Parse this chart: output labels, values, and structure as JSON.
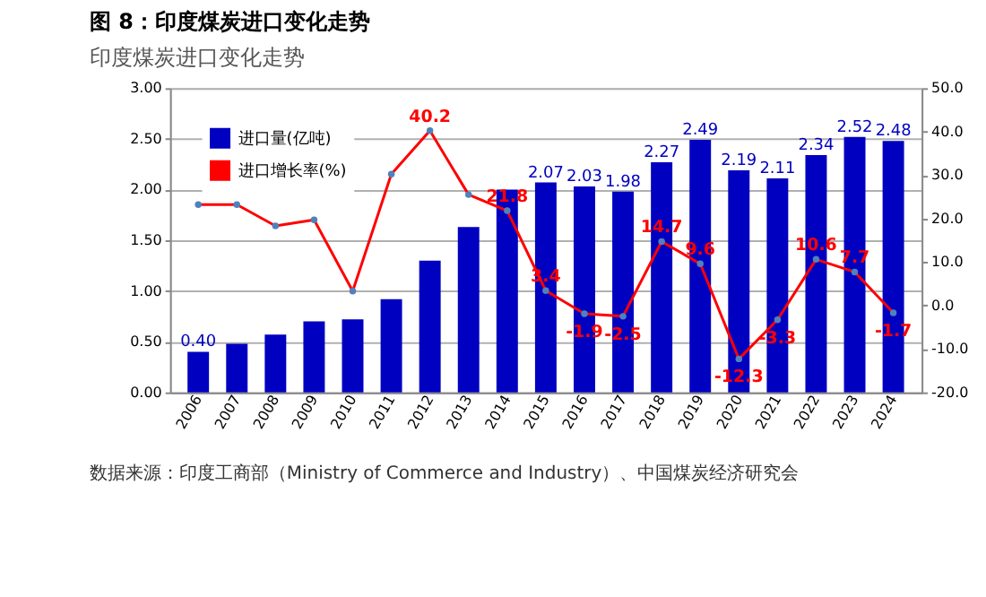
{
  "chart_data": {
    "type": "bar",
    "title": "图 8：印度煤炭进口变化走势",
    "subtitle": "印度煤炭进口变化走势",
    "categories": [
      "2006",
      "2007",
      "2008",
      "2009",
      "2010",
      "2011",
      "2012",
      "2013",
      "2014",
      "2015",
      "2016",
      "2017",
      "2018",
      "2019",
      "2020",
      "2021",
      "2022",
      "2023",
      "2024"
    ],
    "series": [
      {
        "name": "进口量(亿吨)",
        "color": "#0000c0",
        "values": [
          0.4,
          0.48,
          0.57,
          0.7,
          0.72,
          0.92,
          1.3,
          1.63,
          2.0,
          2.07,
          2.03,
          1.98,
          2.27,
          2.49,
          2.19,
          2.11,
          2.34,
          2.52,
          2.48
        ],
        "value_labels": [
          "0.40",
          null,
          null,
          null,
          null,
          null,
          null,
          null,
          null,
          "2.07",
          "2.03",
          "1.98",
          "2.27",
          "2.49",
          "2.19",
          "2.11",
          "2.34",
          "2.52",
          "2.48"
        ]
      },
      {
        "name": "进口增长率(%)",
        "type": "line",
        "axis": "y2",
        "color": "#ff0000",
        "values": [
          23.2,
          23.2,
          18.3,
          19.7,
          3.3,
          30.2,
          40.2,
          25.5,
          21.8,
          3.4,
          -1.9,
          -2.5,
          14.7,
          9.6,
          -12.3,
          -3.3,
          10.6,
          7.7,
          -1.7
        ],
        "value_labels": [
          null,
          null,
          null,
          null,
          null,
          null,
          "40.2",
          null,
          "21.8",
          "3.4",
          "-1.9",
          "-2.5",
          "14.7",
          "9.6",
          "-12.3",
          "-3.3",
          "10.6",
          "7.7",
          "-1.7"
        ]
      }
    ],
    "ylim": [
      0,
      3
    ],
    "yticks": [
      {
        "value": 0,
        "label": "0.00"
      },
      {
        "value": 0.5,
        "label": "0.50"
      },
      {
        "value": 1,
        "label": "1.00"
      },
      {
        "value": 1.5,
        "label": "1.50"
      },
      {
        "value": 2,
        "label": "2.00"
      },
      {
        "value": 2.5,
        "label": "2.50"
      },
      {
        "value": 3,
        "label": "3.00"
      }
    ],
    "y2lim": [
      -20,
      50
    ],
    "y2ticks": [
      {
        "value": -20,
        "label": "-20.0"
      },
      {
        "value": -10,
        "label": "-10.0"
      },
      {
        "value": 0,
        "label": "0.0"
      },
      {
        "value": 10,
        "label": "10.0"
      },
      {
        "value": 20,
        "label": "20.0"
      },
      {
        "value": 30,
        "label": "30.0"
      },
      {
        "value": 40,
        "label": "40.0"
      },
      {
        "value": 50,
        "label": "50.0"
      }
    ],
    "grid": "y",
    "legend": "top left",
    "marker": "circle",
    "line_style": "solid",
    "annotations": [
      "数据来源：印度工商部（Ministry of Commerce and Industry）、中国煤炭经济研究会"
    ]
  }
}
